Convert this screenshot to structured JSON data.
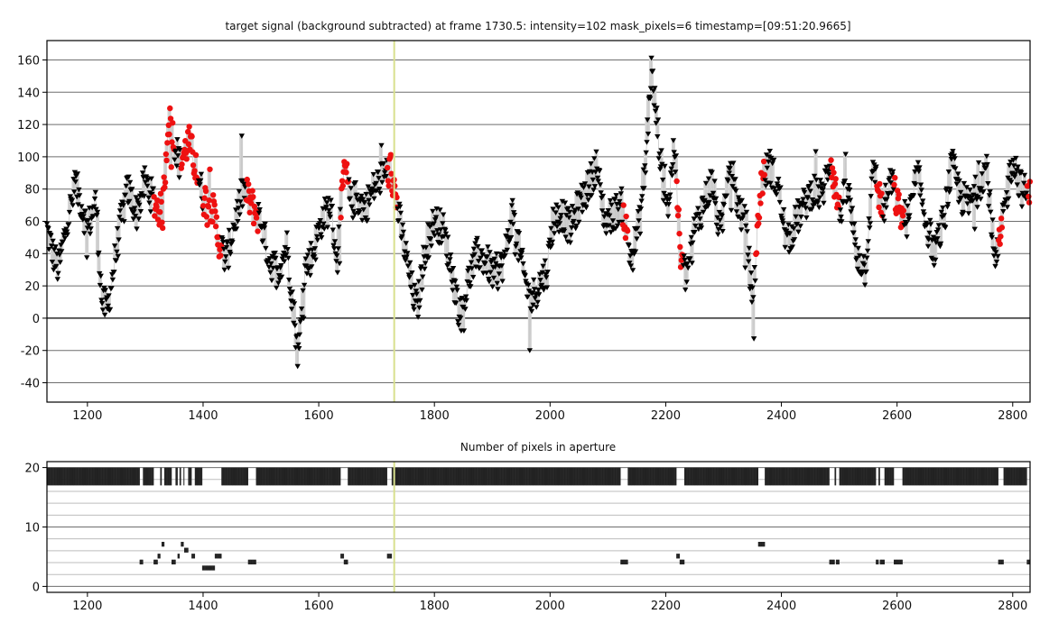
{
  "chart_data": [
    {
      "type": "scatter",
      "title": "target signal (background subtracted) at frame 1730.5: intensity=102 mask_pixels=6 timestamp=[09:51:20.9665]",
      "xlabel": "",
      "ylabel": "",
      "xlim": [
        1130,
        2830
      ],
      "ylim": [
        -52,
        172
      ],
      "xticks": [
        1200,
        1400,
        1600,
        1800,
        2000,
        2200,
        2400,
        2600,
        2800
      ],
      "yticks": [
        -40,
        -20,
        0,
        20,
        40,
        60,
        80,
        100,
        120,
        140,
        160
      ],
      "cursor_x": 1730.5,
      "grid": true,
      "series_note": "black down-triangles = normal frames, red circles = flagged frames",
      "segments": [
        [
          1130,
          55
        ],
        [
          1140,
          40
        ],
        [
          1150,
          30
        ],
        [
          1165,
          60
        ],
        [
          1180,
          82
        ],
        [
          1190,
          70
        ],
        [
          1200,
          55
        ],
        [
          1215,
          72
        ],
        [
          1225,
          10
        ],
        [
          1235,
          5
        ],
        [
          1245,
          30
        ],
        [
          1258,
          60
        ],
        [
          1270,
          80
        ],
        [
          1285,
          65
        ],
        [
          1300,
          85
        ],
        [
          1315,
          72
        ],
        [
          1330,
          65
        ],
        [
          1340,
          125
        ],
        [
          1350,
          110
        ],
        [
          1360,
          95
        ],
        [
          1375,
          110
        ],
        [
          1390,
          90
        ],
        [
          1400,
          75
        ],
        [
          1415,
          70
        ],
        [
          1430,
          45
        ],
        [
          1440,
          35
        ],
        [
          1455,
          60
        ],
        [
          1470,
          80
        ],
        [
          1485,
          70
        ],
        [
          1500,
          60
        ],
        [
          1515,
          35
        ],
        [
          1530,
          30
        ],
        [
          1545,
          45
        ],
        [
          1555,
          10
        ],
        [
          1565,
          -25
        ],
        [
          1575,
          30
        ],
        [
          1590,
          40
        ],
        [
          1605,
          60
        ],
        [
          1620,
          70
        ],
        [
          1632,
          35
        ],
        [
          1645,
          95
        ],
        [
          1655,
          70
        ],
        [
          1665,
          75
        ],
        [
          1680,
          68
        ],
        [
          1695,
          80
        ],
        [
          1710,
          88
        ],
        [
          1725,
          92
        ],
        [
          1740,
          60
        ],
        [
          1750,
          40
        ],
        [
          1760,
          20
        ],
        [
          1770,
          5
        ],
        [
          1785,
          45
        ],
        [
          1800,
          60
        ],
        [
          1815,
          55
        ],
        [
          1830,
          30
        ],
        [
          1845,
          0
        ],
        [
          1860,
          25
        ],
        [
          1875,
          40
        ],
        [
          1890,
          35
        ],
        [
          1905,
          25
        ],
        [
          1920,
          35
        ],
        [
          1935,
          65
        ],
        [
          1950,
          35
        ],
        [
          1965,
          10
        ],
        [
          1980,
          20
        ],
        [
          1995,
          30
        ],
        [
          2005,
          60
        ],
        [
          2020,
          65
        ],
        [
          2035,
          55
        ],
        [
          2050,
          70
        ],
        [
          2065,
          80
        ],
        [
          2080,
          95
        ],
        [
          2095,
          60
        ],
        [
          2110,
          65
        ],
        [
          2125,
          70
        ],
        [
          2140,
          35
        ],
        [
          2155,
          60
        ],
        [
          2165,
          95
        ],
        [
          2175,
          155
        ],
        [
          2185,
          120
        ],
        [
          2195,
          85
        ],
        [
          2205,
          70
        ],
        [
          2215,
          110
        ],
        [
          2225,
          40
        ],
        [
          2235,
          25
        ],
        [
          2250,
          55
        ],
        [
          2265,
          70
        ],
        [
          2280,
          85
        ],
        [
          2295,
          50
        ],
        [
          2310,
          100
        ],
        [
          2325,
          70
        ],
        [
          2340,
          55
        ],
        [
          2350,
          8
        ],
        [
          2365,
          85
        ],
        [
          2380,
          95
        ],
        [
          2395,
          80
        ],
        [
          2410,
          45
        ],
        [
          2425,
          60
        ],
        [
          2440,
          70
        ],
        [
          2455,
          80
        ],
        [
          2470,
          75
        ],
        [
          2485,
          100
        ],
        [
          2500,
          65
        ],
        [
          2515,
          80
        ],
        [
          2530,
          40
        ],
        [
          2545,
          30
        ],
        [
          2560,
          95
        ],
        [
          2575,
          65
        ],
        [
          2590,
          85
        ],
        [
          2605,
          65
        ],
        [
          2620,
          60
        ],
        [
          2635,
          90
        ],
        [
          2650,
          60
        ],
        [
          2665,
          40
        ],
        [
          2680,
          60
        ],
        [
          2695,
          95
        ],
        [
          2710,
          75
        ],
        [
          2725,
          70
        ],
        [
          2740,
          80
        ],
        [
          2755,
          95
        ],
        [
          2770,
          30
        ],
        [
          2785,
          65
        ],
        [
          2800,
          100
        ],
        [
          2815,
          80
        ],
        [
          2830,
          75
        ]
      ],
      "flagged_ranges": [
        [
          1315,
          1335
        ],
        [
          1335,
          1350
        ],
        [
          1362,
          1392
        ],
        [
          1400,
          1432
        ],
        [
          1475,
          1495
        ],
        [
          1638,
          1652
        ],
        [
          1718,
          1735
        ],
        [
          2125,
          2135
        ],
        [
          2218,
          2230
        ],
        [
          2355,
          2372
        ],
        [
          2485,
          2500
        ],
        [
          2565,
          2575
        ],
        [
          2595,
          2612
        ],
        [
          2775,
          2782
        ],
        [
          2825,
          2830
        ]
      ]
    },
    {
      "type": "bar",
      "title": "Number of pixels in aperture",
      "xlabel": "",
      "ylabel": "",
      "xlim": [
        1130,
        2830
      ],
      "ylim": [
        -1,
        21
      ],
      "xticks": [
        1200,
        1400,
        1600,
        1800,
        2000,
        2200,
        2400,
        2600,
        2800
      ],
      "yticks": [
        0,
        10,
        20
      ],
      "cursor_x": 1730.5,
      "baseline_value": 20,
      "baseline_low": 17,
      "dips": [
        [
          1290,
          1296,
          4
        ],
        [
          1315,
          1322,
          4
        ],
        [
          1322,
          1326,
          5
        ],
        [
          1328,
          1333,
          7
        ],
        [
          1346,
          1352,
          4
        ],
        [
          1356,
          1360,
          5
        ],
        [
          1362,
          1366,
          7
        ],
        [
          1368,
          1374,
          6
        ],
        [
          1380,
          1386,
          5
        ],
        [
          1398,
          1420,
          3
        ],
        [
          1420,
          1432,
          5
        ],
        [
          1478,
          1492,
          4
        ],
        [
          1638,
          1644,
          5
        ],
        [
          1644,
          1650,
          4
        ],
        [
          1718,
          1726,
          5
        ],
        [
          2122,
          2128,
          4
        ],
        [
          2128,
          2134,
          4
        ],
        [
          2218,
          2224,
          5
        ],
        [
          2224,
          2232,
          4
        ],
        [
          2360,
          2372,
          7
        ],
        [
          2483,
          2492,
          4
        ],
        [
          2494,
          2500,
          4
        ],
        [
          2563,
          2568,
          4
        ],
        [
          2570,
          2578,
          4
        ],
        [
          2594,
          2602,
          4
        ],
        [
          2602,
          2610,
          4
        ],
        [
          2775,
          2784,
          4
        ],
        [
          2824,
          2830,
          4
        ]
      ]
    }
  ]
}
